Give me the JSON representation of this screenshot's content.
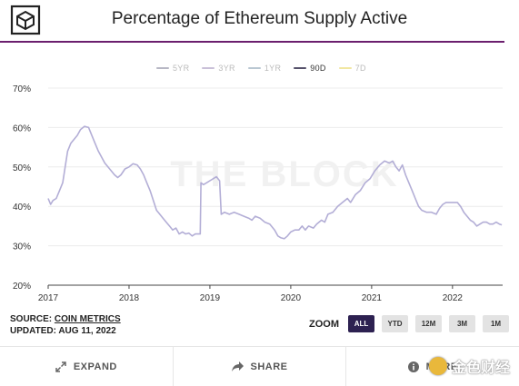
{
  "header": {
    "title": "Percentage of Ethereum Supply Active"
  },
  "legend": {
    "items": [
      {
        "label": "5YR",
        "color": "#b7b7c4",
        "active": false
      },
      {
        "label": "3YR",
        "color": "#c9c0d8",
        "active": false
      },
      {
        "label": "1YR",
        "color": "#b9c7d2",
        "active": false
      },
      {
        "label": "90D",
        "color": "#55516a",
        "active": true
      },
      {
        "label": "7D",
        "color": "#f1e7a1",
        "active": false
      }
    ]
  },
  "watermark_chart": "THE BLOCK",
  "source": {
    "prefix": "SOURCE:",
    "name": "COIN METRICS",
    "updated": "UPDATED: AUG 11, 2022"
  },
  "zoom": {
    "label": "ZOOM",
    "buttons": [
      "ALL",
      "YTD",
      "12M",
      "3M",
      "1M"
    ],
    "active": "ALL"
  },
  "footer": {
    "expand": "EXPAND",
    "share": "SHARE",
    "more": "MORE"
  },
  "watermark_corner": "金色财经",
  "chart_data": {
    "type": "line",
    "title": "Percentage of Ethereum Supply Active",
    "series": [
      {
        "name": "90D",
        "color": "#b3aed6",
        "points": [
          [
            2017.0,
            42
          ],
          [
            2017.03,
            40.5
          ],
          [
            2017.06,
            41.5
          ],
          [
            2017.1,
            42
          ],
          [
            2017.14,
            44
          ],
          [
            2017.18,
            46
          ],
          [
            2017.21,
            50
          ],
          [
            2017.24,
            54
          ],
          [
            2017.28,
            56
          ],
          [
            2017.32,
            57
          ],
          [
            2017.36,
            58
          ],
          [
            2017.4,
            59.5
          ],
          [
            2017.45,
            60.3
          ],
          [
            2017.5,
            60
          ],
          [
            2017.54,
            58
          ],
          [
            2017.58,
            56
          ],
          [
            2017.62,
            54
          ],
          [
            2017.66,
            52.5
          ],
          [
            2017.7,
            51
          ],
          [
            2017.74,
            50
          ],
          [
            2017.78,
            49
          ],
          [
            2017.82,
            48
          ],
          [
            2017.86,
            47.3
          ],
          [
            2017.9,
            48
          ],
          [
            2017.95,
            49.5
          ],
          [
            2018.0,
            50
          ],
          [
            2018.05,
            50.8
          ],
          [
            2018.1,
            50.5
          ],
          [
            2018.14,
            49.5
          ],
          [
            2018.18,
            48
          ],
          [
            2018.22,
            46
          ],
          [
            2018.26,
            44
          ],
          [
            2018.3,
            41.5
          ],
          [
            2018.34,
            39
          ],
          [
            2018.38,
            38
          ],
          [
            2018.42,
            37
          ],
          [
            2018.46,
            36
          ],
          [
            2018.5,
            35
          ],
          [
            2018.54,
            34
          ],
          [
            2018.58,
            34.5
          ],
          [
            2018.62,
            33
          ],
          [
            2018.66,
            33.5
          ],
          [
            2018.7,
            33
          ],
          [
            2018.74,
            33.2
          ],
          [
            2018.78,
            32.5
          ],
          [
            2018.82,
            33
          ],
          [
            2018.86,
            33
          ],
          [
            2018.88,
            33
          ],
          [
            2018.89,
            46
          ],
          [
            2018.92,
            45.5
          ],
          [
            2018.96,
            46
          ],
          [
            2019.0,
            46.5
          ],
          [
            2019.04,
            47
          ],
          [
            2019.08,
            47.5
          ],
          [
            2019.12,
            46.5
          ],
          [
            2019.14,
            38
          ],
          [
            2019.18,
            38.5
          ],
          [
            2019.24,
            38
          ],
          [
            2019.3,
            38.5
          ],
          [
            2019.36,
            38
          ],
          [
            2019.42,
            37.5
          ],
          [
            2019.48,
            37
          ],
          [
            2019.52,
            36.5
          ],
          [
            2019.56,
            37.5
          ],
          [
            2019.62,
            37
          ],
          [
            2019.68,
            36
          ],
          [
            2019.74,
            35.5
          ],
          [
            2019.8,
            34
          ],
          [
            2019.84,
            32.5
          ],
          [
            2019.88,
            32
          ],
          [
            2019.92,
            31.8
          ],
          [
            2019.96,
            32.5
          ],
          [
            2020.0,
            33.5
          ],
          [
            2020.05,
            34
          ],
          [
            2020.1,
            34
          ],
          [
            2020.14,
            35
          ],
          [
            2020.18,
            34
          ],
          [
            2020.22,
            35
          ],
          [
            2020.28,
            34.5
          ],
          [
            2020.32,
            35.5
          ],
          [
            2020.38,
            36.5
          ],
          [
            2020.42,
            36
          ],
          [
            2020.46,
            38
          ],
          [
            2020.52,
            38.5
          ],
          [
            2020.58,
            40
          ],
          [
            2020.64,
            41
          ],
          [
            2020.7,
            42
          ],
          [
            2020.74,
            41
          ],
          [
            2020.8,
            43
          ],
          [
            2020.86,
            44
          ],
          [
            2020.92,
            46
          ],
          [
            2020.98,
            47
          ],
          [
            2021.04,
            49
          ],
          [
            2021.1,
            50.5
          ],
          [
            2021.16,
            51.5
          ],
          [
            2021.22,
            51
          ],
          [
            2021.26,
            51.5
          ],
          [
            2021.3,
            50
          ],
          [
            2021.34,
            49
          ],
          [
            2021.38,
            50.5
          ],
          [
            2021.42,
            48
          ],
          [
            2021.46,
            46
          ],
          [
            2021.5,
            44
          ],
          [
            2021.54,
            42
          ],
          [
            2021.58,
            40
          ],
          [
            2021.62,
            39
          ],
          [
            2021.68,
            38.5
          ],
          [
            2021.74,
            38.5
          ],
          [
            2021.8,
            38
          ],
          [
            2021.84,
            39.5
          ],
          [
            2021.88,
            40.5
          ],
          [
            2021.92,
            41
          ],
          [
            2021.96,
            41
          ],
          [
            2022.0,
            41
          ],
          [
            2022.06,
            41
          ],
          [
            2022.1,
            40
          ],
          [
            2022.14,
            38.5
          ],
          [
            2022.18,
            37.5
          ],
          [
            2022.22,
            36.5
          ],
          [
            2022.26,
            36
          ],
          [
            2022.3,
            35
          ],
          [
            2022.34,
            35.5
          ],
          [
            2022.38,
            36
          ],
          [
            2022.42,
            36
          ],
          [
            2022.46,
            35.5
          ],
          [
            2022.5,
            35.5
          ],
          [
            2022.54,
            36
          ],
          [
            2022.58,
            35.5
          ],
          [
            2022.61,
            35.3
          ]
        ]
      }
    ],
    "x_ticks": [
      "2017",
      "2018",
      "2019",
      "2020",
      "2021",
      "2022"
    ],
    "x_tick_values": [
      2017,
      2018,
      2019,
      2020,
      2021,
      2022
    ],
    "y_ticks": [
      "70%",
      "60%",
      "50%",
      "40%",
      "30%",
      "20%"
    ],
    "y_tick_values": [
      70,
      60,
      50,
      40,
      30,
      20
    ],
    "xlim": [
      2017,
      2022.62
    ],
    "ylim": [
      20,
      70
    ],
    "grid": "horizontal",
    "legend_position": "top-center"
  }
}
